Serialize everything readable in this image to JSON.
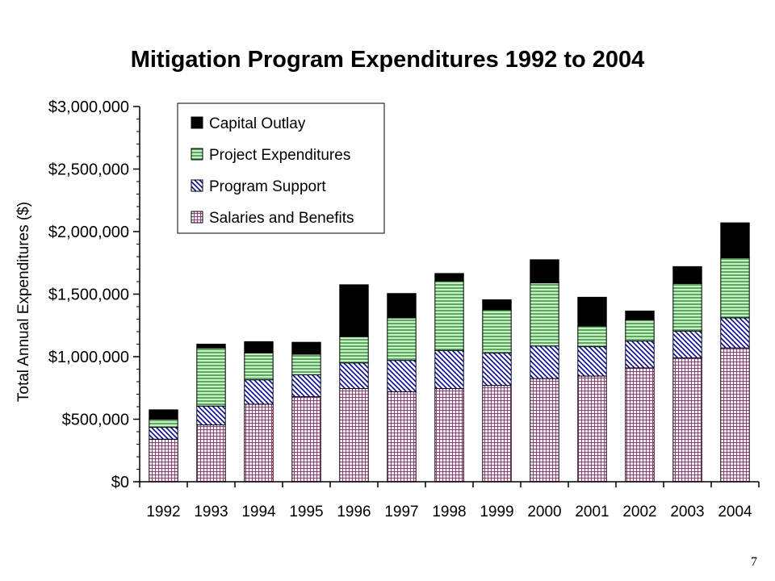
{
  "page": {
    "number": "7"
  },
  "chart_data": {
    "type": "bar",
    "stacked": true,
    "title": "Mitigation Program Expenditures 1992 to 2004",
    "xlabel": "",
    "ylabel": "Total Annual Expenditures ($)",
    "ylim": [
      0,
      3000000
    ],
    "y_tick_labels": [
      "$0",
      "$500,000",
      "$1,000,000",
      "$1,500,000",
      "$2,000,000",
      "$2,500,000",
      "$3,000,000"
    ],
    "y_tick_values": [
      0,
      500000,
      1000000,
      1500000,
      2000000,
      2500000,
      3000000
    ],
    "legend_position": "top-left",
    "grid": false,
    "categories": [
      "1992",
      "1993",
      "1994",
      "1995",
      "1996",
      "1997",
      "1998",
      "1999",
      "2000",
      "2001",
      "2002",
      "2003",
      "2004"
    ],
    "series": [
      {
        "name": "Salaries and Benefits",
        "color": "#b03070",
        "pattern": "grid",
        "values": [
          340000,
          455000,
          620000,
          680000,
          745000,
          720000,
          745000,
          770000,
          825000,
          845000,
          910000,
          990000,
          1070000
        ]
      },
      {
        "name": "Program Support",
        "color": "#0000cc",
        "pattern": "diagonal",
        "values": [
          95000,
          150000,
          195000,
          175000,
          205000,
          250000,
          305000,
          260000,
          260000,
          235000,
          215000,
          215000,
          240000
        ]
      },
      {
        "name": "Project Expenditures",
        "color": "#2e8b2e",
        "pattern": "horizontal",
        "values": [
          65000,
          465000,
          215000,
          165000,
          210000,
          340000,
          555000,
          345000,
          505000,
          165000,
          170000,
          380000,
          480000
        ]
      },
      {
        "name": "Capital Outlay",
        "color": "#000000",
        "pattern": "solid",
        "values": [
          75000,
          30000,
          90000,
          95000,
          415000,
          195000,
          60000,
          80000,
          185000,
          230000,
          70000,
          135000,
          280000
        ]
      }
    ],
    "legend_order": [
      "Capital Outlay",
      "Project Expenditures",
      "Program Support",
      "Salaries and Benefits"
    ]
  }
}
